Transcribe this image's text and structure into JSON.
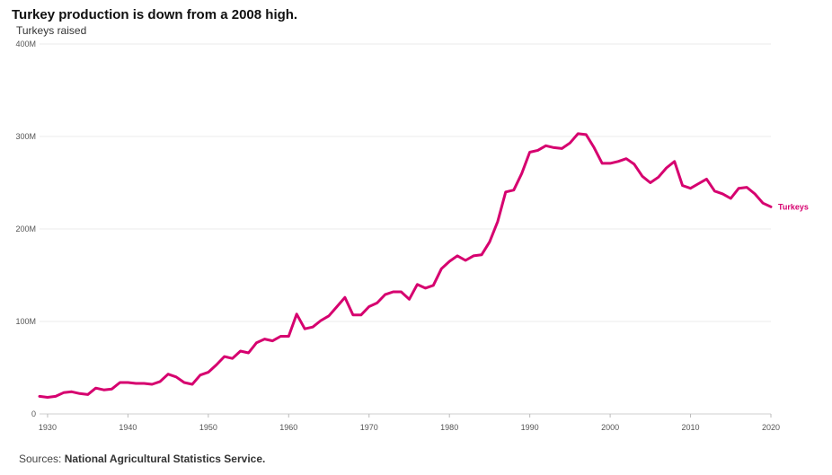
{
  "chart_data": {
    "type": "line",
    "title": "Turkey production is down from a 2008 high.",
    "ylabel": "Turkeys raised",
    "xlabel": "",
    "ylim": [
      0,
      400
    ],
    "y_unit": "M",
    "xlim": [
      1929,
      2020
    ],
    "y_ticks": [
      {
        "value": 0,
        "label": "0"
      },
      {
        "value": 100,
        "label": "100M"
      },
      {
        "value": 200,
        "label": "200M"
      },
      {
        "value": 300,
        "label": "300M"
      },
      {
        "value": 400,
        "label": "400M"
      }
    ],
    "x_ticks": [
      {
        "value": 1930,
        "label": "1930"
      },
      {
        "value": 1940,
        "label": "1940"
      },
      {
        "value": 1950,
        "label": "1950"
      },
      {
        "value": 1960,
        "label": "1960"
      },
      {
        "value": 1970,
        "label": "1970"
      },
      {
        "value": 1980,
        "label": "1980"
      },
      {
        "value": 1990,
        "label": "1990"
      },
      {
        "value": 2000,
        "label": "2000"
      },
      {
        "value": 2010,
        "label": "2010"
      },
      {
        "value": 2020,
        "label": "2020"
      }
    ],
    "grid": true,
    "series": [
      {
        "name": "Turkeys",
        "color": "#d6006f",
        "x": [
          1929,
          1930,
          1931,
          1932,
          1933,
          1934,
          1935,
          1936,
          1937,
          1938,
          1939,
          1940,
          1941,
          1942,
          1943,
          1944,
          1945,
          1946,
          1947,
          1948,
          1949,
          1950,
          1951,
          1952,
          1953,
          1954,
          1955,
          1956,
          1957,
          1958,
          1959,
          1960,
          1961,
          1962,
          1963,
          1964,
          1965,
          1966,
          1967,
          1968,
          1969,
          1970,
          1971,
          1972,
          1973,
          1974,
          1975,
          1976,
          1977,
          1978,
          1979,
          1980,
          1981,
          1982,
          1983,
          1984,
          1985,
          1986,
          1987,
          1988,
          1989,
          1990,
          1991,
          1992,
          1993,
          1994,
          1995,
          1996,
          1997,
          1998,
          1999,
          2000,
          2001,
          2002,
          2003,
          2004,
          2005,
          2006,
          2007,
          2008,
          2009,
          2010,
          2011,
          2012,
          2013,
          2014,
          2015,
          2016,
          2017,
          2018,
          2019,
          2020
        ],
        "values": [
          19,
          18,
          19,
          23,
          24,
          22,
          21,
          28,
          26,
          27,
          34,
          34,
          33,
          33,
          32,
          35,
          43,
          40,
          34,
          32,
          42,
          45,
          53,
          62,
          60,
          68,
          66,
          77,
          81,
          79,
          84,
          84,
          108,
          92,
          94,
          101,
          106,
          116,
          126,
          107,
          107,
          116,
          120,
          129,
          132,
          132,
          124,
          140,
          136,
          139,
          157,
          165,
          171,
          166,
          171,
          172,
          186,
          208,
          240,
          242,
          260,
          283,
          285,
          290,
          288,
          287,
          293,
          303,
          302,
          288,
          271,
          271,
          273,
          276,
          270,
          257,
          250,
          256,
          266,
          273,
          247,
          244,
          249,
          254,
          241,
          238,
          233,
          244,
          245,
          238,
          228,
          224
        ]
      }
    ]
  },
  "source": {
    "prefix": "Sources:",
    "name": "National Agricultural Statistics Service."
  }
}
